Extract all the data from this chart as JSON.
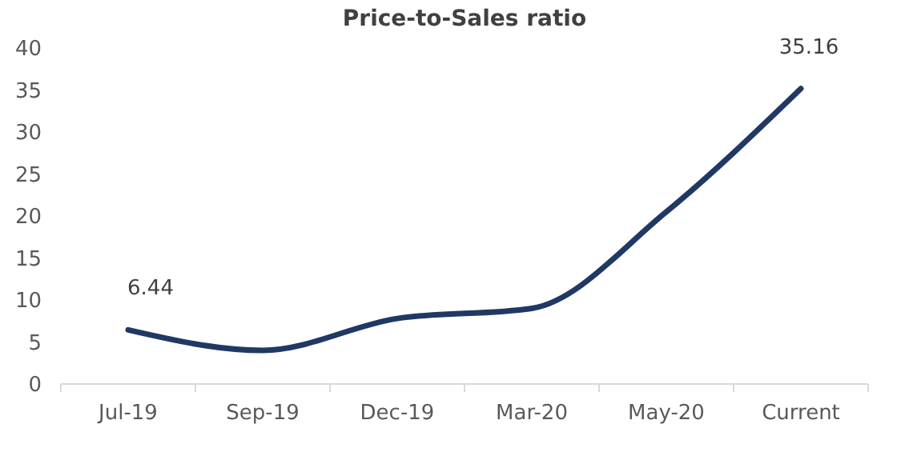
{
  "chart_data": {
    "type": "line",
    "title": "Price-to-Sales ratio",
    "categories": [
      "Jul-19",
      "Sep-19",
      "Dec-19",
      "Mar-20",
      "May-20",
      "Current"
    ],
    "values": [
      6.44,
      4,
      7.8,
      9,
      20.5,
      35.16
    ],
    "value_labels": [
      "6.44",
      null,
      null,
      null,
      null,
      "35.16"
    ],
    "color": "#203864",
    "ylim": [
      0,
      40
    ],
    "yticks": [
      0,
      5,
      10,
      15,
      20,
      25,
      30,
      35,
      40
    ],
    "grid": false,
    "marker": "none",
    "line_style": "solid"
  }
}
